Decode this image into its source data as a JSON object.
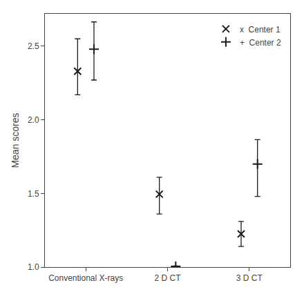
{
  "chart_data": {
    "type": "scatter",
    "categories": [
      "Conventional X-rays",
      "2 D CT",
      "3 D CT"
    ],
    "series": [
      {
        "name": "x  Center 1",
        "color": "#1a1a1a",
        "marker": "x",
        "values": [
          2.33,
          1.495,
          1.225
        ],
        "error_lo": [
          0.16,
          0.135,
          0.085
        ],
        "error_hi": [
          0.22,
          0.115,
          0.085
        ]
      },
      {
        "name": "+  Center 2",
        "color": "#1a1a1a",
        "marker": "+",
        "values": [
          2.48,
          1.005,
          1.7
        ],
        "error_lo": [
          0.21,
          0.003,
          0.22
        ],
        "error_hi": [
          0.185,
          0.003,
          0.165
        ]
      }
    ],
    "ylabel": "Mean scores",
    "ylim": [
      1.0,
      2.72
    ],
    "yticks": [
      {
        "value": 1.0,
        "label": "1.0"
      },
      1.5,
      {
        "value": 2.0,
        "label": "2.0"
      },
      2.5
    ],
    "grid": false,
    "legend": "upper right"
  }
}
